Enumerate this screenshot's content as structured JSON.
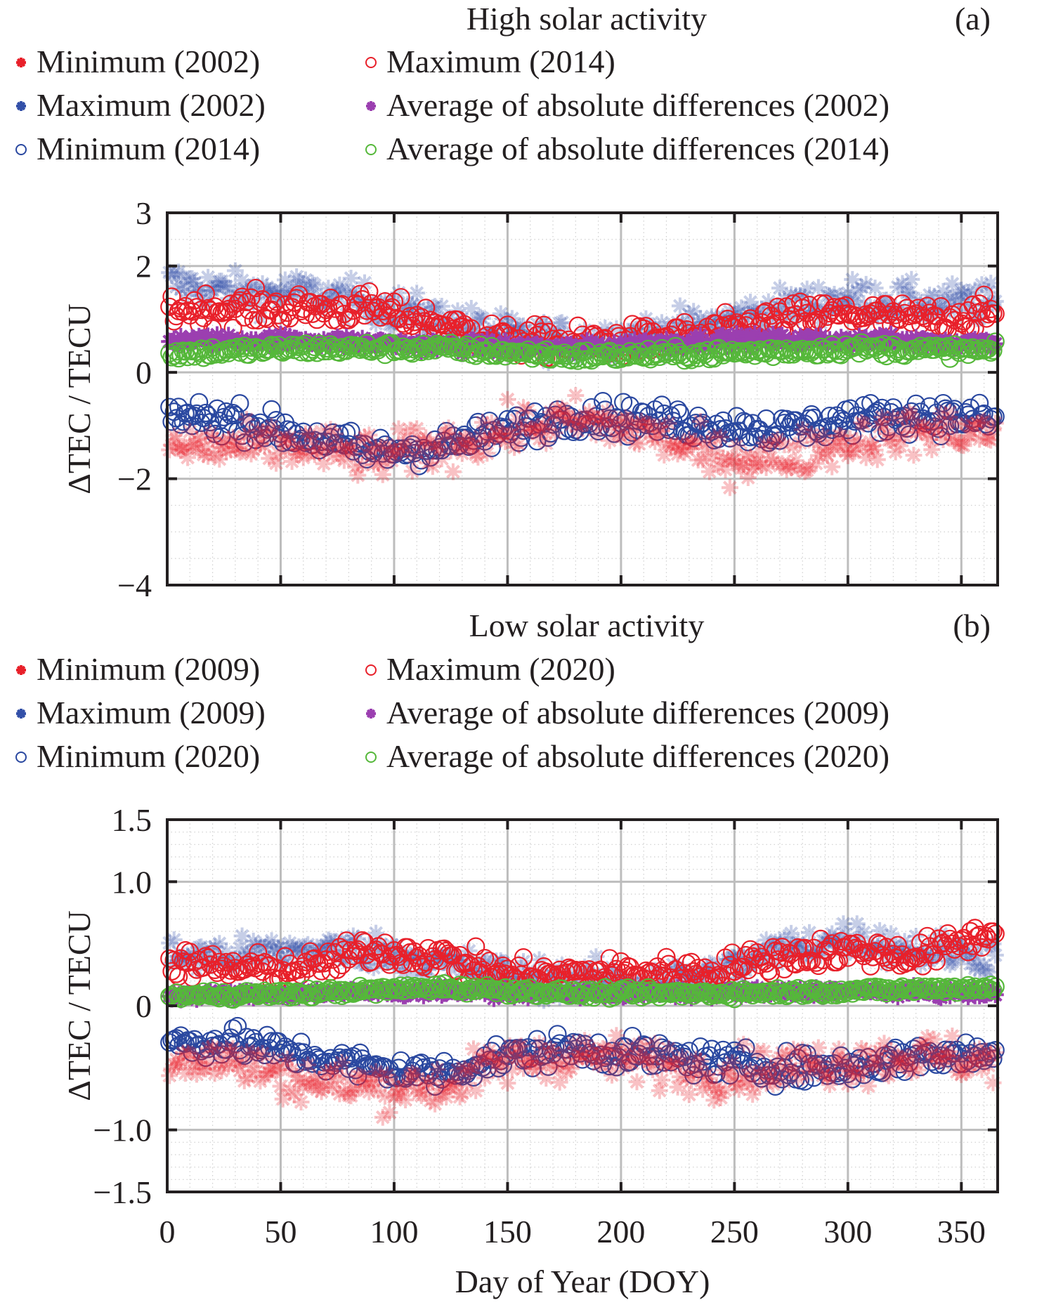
{
  "chart_data": [
    {
      "type": "scatter",
      "panel_label": "(a)",
      "title": "High solar activity",
      "xlabel": "",
      "ylabel": "ΔTEC / TECU",
      "xlim": [
        0,
        366
      ],
      "ylim": [
        -4,
        3
      ],
      "xticks": [
        0,
        50,
        100,
        150,
        200,
        250,
        300,
        350
      ],
      "yticks": [
        -4,
        -2,
        0,
        2,
        3
      ],
      "ytick_labels": [
        "−4",
        "−2",
        "0",
        "2",
        "3"
      ],
      "grid": "major solid + minor dotted",
      "legend_position": "top",
      "legend": [
        {
          "label": "Minimum (2002)",
          "marker": "asterisk",
          "color": "#e8202a"
        },
        {
          "label": "Maximum (2014)",
          "marker": "circle",
          "color": "#e8202a"
        },
        {
          "label": "Maximum (2002)",
          "marker": "asterisk",
          "color": "#3350a8"
        },
        {
          "label": "Average of absolute differences (2002)",
          "marker": "asterisk",
          "color": "#9b3fb0"
        },
        {
          "label": "Minimum (2014)",
          "marker": "circle",
          "color": "#2a48a0"
        },
        {
          "label": "Average of absolute differences (2014)",
          "marker": "circle",
          "color": "#55b83a"
        }
      ],
      "series": [
        {
          "name": "Maximum (2002)",
          "trend_doy": [
            0,
            30,
            60,
            90,
            120,
            150,
            180,
            210,
            240,
            270,
            300,
            330,
            366
          ],
          "values": [
            1.7,
            1.5,
            1.5,
            1.3,
            1.0,
            0.7,
            0.6,
            0.7,
            0.9,
            1.2,
            1.4,
            1.3,
            1.3
          ],
          "spread": 0.3
        },
        {
          "name": "Maximum (2014)",
          "trend_doy": [
            0,
            30,
            60,
            90,
            120,
            150,
            180,
            210,
            240,
            270,
            300,
            330,
            366
          ],
          "values": [
            1.2,
            1.2,
            1.2,
            1.2,
            0.9,
            0.6,
            0.55,
            0.6,
            0.7,
            1.0,
            1.1,
            1.0,
            1.1
          ],
          "spread": 0.25
        },
        {
          "name": "Average of absolute differences (2002)",
          "trend_doy": [
            0,
            60,
            120,
            180,
            240,
            300,
            366
          ],
          "values": [
            0.6,
            0.6,
            0.5,
            0.45,
            0.6,
            0.6,
            0.55
          ],
          "spread": 0.1
        },
        {
          "name": "Average of absolute differences (2014)",
          "trend_doy": [
            0,
            60,
            120,
            180,
            240,
            300,
            366
          ],
          "values": [
            0.35,
            0.45,
            0.45,
            0.3,
            0.35,
            0.45,
            0.4
          ],
          "spread": 0.1
        },
        {
          "name": "Minimum (2014)",
          "trend_doy": [
            0,
            30,
            60,
            90,
            120,
            150,
            180,
            210,
            240,
            270,
            300,
            330,
            366
          ],
          "values": [
            -0.8,
            -0.9,
            -1.2,
            -1.5,
            -1.4,
            -1.1,
            -0.8,
            -0.9,
            -1.0,
            -1.1,
            -0.9,
            -0.8,
            -0.9
          ],
          "spread": 0.25
        },
        {
          "name": "Minimum (2002)",
          "trend_doy": [
            0,
            30,
            60,
            90,
            120,
            150,
            180,
            210,
            240,
            270,
            300,
            330,
            366
          ],
          "values": [
            -1.4,
            -1.4,
            -1.4,
            -1.6,
            -1.4,
            -1.1,
            -0.9,
            -1.1,
            -1.6,
            -1.6,
            -1.3,
            -1.1,
            -1.1
          ],
          "spread": 0.35
        }
      ]
    },
    {
      "type": "scatter",
      "panel_label": "(b)",
      "title": "Low solar activity",
      "xlabel": "Day of Year (DOY)",
      "ylabel": "ΔTEC / TECU",
      "xlim": [
        0,
        366
      ],
      "ylim": [
        -1.5,
        1.5
      ],
      "xticks": [
        0,
        50,
        100,
        150,
        200,
        250,
        300,
        350
      ],
      "yticks": [
        -1.5,
        -1.0,
        0,
        1.0,
        1.5
      ],
      "ytick_labels": [
        "−1.5",
        "−1.0",
        "0",
        "1.0",
        "1.5"
      ],
      "grid": "major solid + minor dotted",
      "legend_position": "top",
      "legend": [
        {
          "label": "Minimum (2009)",
          "marker": "asterisk",
          "color": "#e8202a"
        },
        {
          "label": "Maximum (2020)",
          "marker": "circle",
          "color": "#e8202a"
        },
        {
          "label": "Maximum (2009)",
          "marker": "asterisk",
          "color": "#3350a8"
        },
        {
          "label": "Average of absolute differences (2009)",
          "marker": "asterisk",
          "color": "#9b3fb0"
        },
        {
          "label": "Minimum (2020)",
          "marker": "circle",
          "color": "#2a48a0"
        },
        {
          "label": "Average of absolute differences (2020)",
          "marker": "circle",
          "color": "#55b83a"
        }
      ],
      "series": [
        {
          "name": "Maximum (2009)",
          "trend_doy": [
            0,
            30,
            60,
            90,
            120,
            150,
            180,
            210,
            240,
            270,
            300,
            330,
            366
          ],
          "values": [
            0.4,
            0.4,
            0.45,
            0.45,
            0.35,
            0.25,
            0.2,
            0.2,
            0.25,
            0.45,
            0.55,
            0.45,
            0.4
          ],
          "spread": 0.12
        },
        {
          "name": "Maximum (2020)",
          "trend_doy": [
            0,
            30,
            60,
            90,
            120,
            150,
            180,
            210,
            240,
            270,
            300,
            330,
            366
          ],
          "values": [
            0.35,
            0.3,
            0.3,
            0.45,
            0.4,
            0.25,
            0.25,
            0.27,
            0.27,
            0.4,
            0.45,
            0.4,
            0.6
          ],
          "spread": 0.1
        },
        {
          "name": "Average of absolute differences (2009)",
          "trend_doy": [
            0,
            60,
            120,
            180,
            240,
            300,
            366
          ],
          "values": [
            0.08,
            0.1,
            0.12,
            0.1,
            0.1,
            0.12,
            0.1
          ],
          "spread": 0.03
        },
        {
          "name": "Average of absolute differences (2020)",
          "trend_doy": [
            0,
            60,
            120,
            180,
            240,
            300,
            366
          ],
          "values": [
            0.08,
            0.1,
            0.15,
            0.1,
            0.1,
            0.12,
            0.15
          ],
          "spread": 0.03
        },
        {
          "name": "Minimum (2020)",
          "trend_doy": [
            0,
            30,
            60,
            90,
            120,
            150,
            180,
            210,
            240,
            270,
            300,
            330,
            366
          ],
          "values": [
            -0.3,
            -0.3,
            -0.4,
            -0.5,
            -0.55,
            -0.4,
            -0.35,
            -0.4,
            -0.45,
            -0.5,
            -0.5,
            -0.4,
            -0.4
          ],
          "spread": 0.1
        },
        {
          "name": "Minimum (2009)",
          "trend_doy": [
            0,
            30,
            60,
            90,
            120,
            150,
            180,
            210,
            240,
            270,
            300,
            330,
            366
          ],
          "values": [
            -0.4,
            -0.45,
            -0.6,
            -0.65,
            -0.65,
            -0.45,
            -0.4,
            -0.45,
            -0.55,
            -0.5,
            -0.45,
            -0.4,
            -0.45
          ],
          "spread": 0.15
        }
      ]
    }
  ]
}
